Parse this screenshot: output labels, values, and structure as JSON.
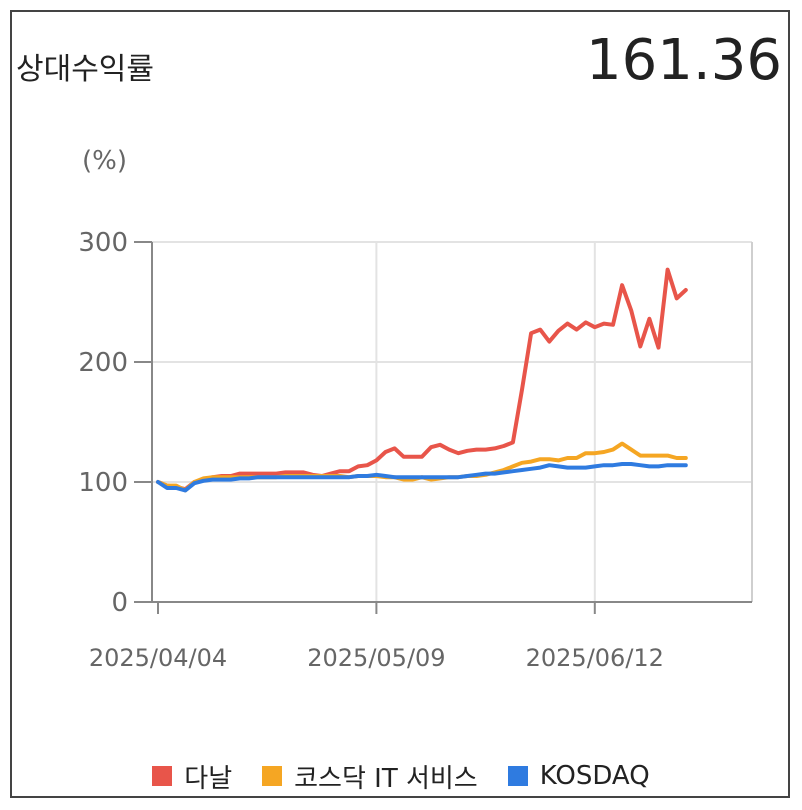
{
  "header": {
    "title": "상대수익률",
    "value": "161.36"
  },
  "chart_data": {
    "type": "line",
    "unit_label": "(%)",
    "ylim": [
      0,
      300
    ],
    "y_ticks": [
      0,
      100,
      200,
      300
    ],
    "x_tick_labels": [
      {
        "label": "2025/04/04",
        "index": 0
      },
      {
        "label": "2025/05/09",
        "index": 24
      },
      {
        "label": "2025/06/12",
        "index": 48
      }
    ],
    "grid": true,
    "legend_position": "bottom",
    "series": [
      {
        "name": "다날",
        "color": "#E8554A",
        "values": [
          100,
          97,
          96,
          94,
          100,
          102,
          104,
          105,
          105,
          107,
          107,
          107,
          107,
          107,
          108,
          108,
          108,
          106,
          105,
          107,
          109,
          109,
          113,
          114,
          118,
          125,
          128,
          121,
          121,
          121,
          129,
          131,
          127,
          124,
          126,
          127,
          127,
          128,
          130,
          133,
          177,
          224,
          227,
          217,
          226,
          232,
          227,
          233,
          229,
          232,
          231,
          264,
          243,
          213,
          236,
          212,
          277,
          253,
          260
        ]
      },
      {
        "name": "코스닥 IT 서비스",
        "color": "#F5A623",
        "values": [
          100,
          97,
          97,
          93,
          100,
          103,
          104,
          104,
          104,
          104,
          104,
          104,
          104,
          104,
          105,
          105,
          105,
          105,
          105,
          105,
          105,
          104,
          105,
          105,
          105,
          104,
          104,
          102,
          102,
          104,
          102,
          103,
          104,
          104,
          105,
          105,
          106,
          108,
          110,
          113,
          116,
          117,
          119,
          119,
          118,
          120,
          120,
          124,
          124,
          125,
          127,
          132,
          127,
          122,
          122,
          122,
          122,
          120,
          120
        ]
      },
      {
        "name": "KOSDAQ",
        "color": "#2F7BE0",
        "values": [
          100,
          95,
          95,
          93,
          99,
          101,
          102,
          102,
          102,
          103,
          103,
          104,
          104,
          104,
          104,
          104,
          104,
          104,
          104,
          104,
          104,
          104,
          105,
          105,
          106,
          105,
          104,
          104,
          104,
          104,
          104,
          104,
          104,
          104,
          105,
          106,
          107,
          107,
          108,
          109,
          110,
          111,
          112,
          114,
          113,
          112,
          112,
          112,
          113,
          114,
          114,
          115,
          115,
          114,
          113,
          113,
          114,
          114,
          114
        ]
      }
    ]
  }
}
